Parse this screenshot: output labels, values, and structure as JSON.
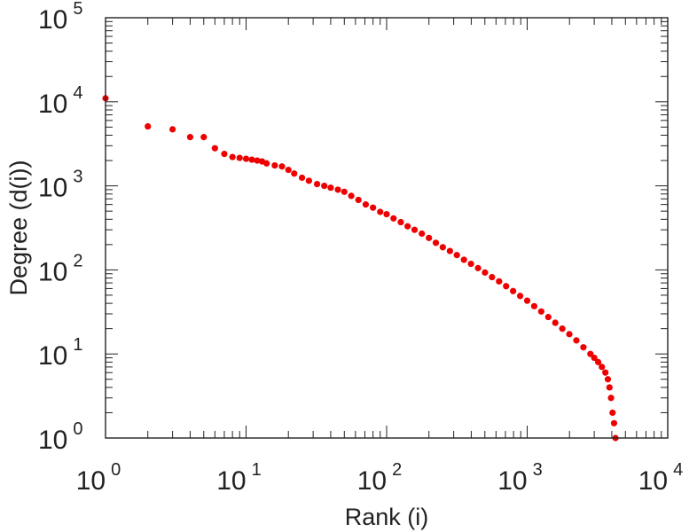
{
  "chart_data": {
    "type": "scatter",
    "xlabel": "Rank (i)",
    "ylabel": "Degree (d(i))",
    "x_scale": "log",
    "y_scale": "log",
    "xlim": [
      1,
      10000
    ],
    "ylim": [
      1,
      100000
    ],
    "grid": false,
    "legend": "none",
    "marker_color": "#ee0000",
    "x_ticks": [
      {
        "base": "10",
        "exp": "0",
        "value": 1
      },
      {
        "base": "10",
        "exp": "1",
        "value": 10
      },
      {
        "base": "10",
        "exp": "2",
        "value": 100
      },
      {
        "base": "10",
        "exp": "3",
        "value": 1000
      },
      {
        "base": "10",
        "exp": "4",
        "value": 10000
      }
    ],
    "y_ticks": [
      {
        "base": "10",
        "exp": "0",
        "value": 1
      },
      {
        "base": "10",
        "exp": "1",
        "value": 10
      },
      {
        "base": "10",
        "exp": "2",
        "value": 100
      },
      {
        "base": "10",
        "exp": "3",
        "value": 1000
      },
      {
        "base": "10",
        "exp": "4",
        "value": 10000
      },
      {
        "base": "10",
        "exp": "5",
        "value": 100000
      }
    ],
    "series": [
      {
        "color": "#ee0000",
        "x": [
          1,
          2,
          3,
          4,
          5,
          6,
          7,
          8,
          9,
          10,
          11,
          12,
          13,
          14,
          16,
          18,
          20,
          22,
          25,
          28,
          32,
          36,
          40,
          45,
          50,
          56,
          63,
          71,
          80,
          90,
          100,
          112,
          126,
          141,
          158,
          178,
          200,
          224,
          251,
          282,
          316,
          355,
          398,
          447,
          501,
          562,
          631,
          708,
          794,
          891,
          1000,
          1122,
          1259,
          1413,
          1585,
          1778,
          1995,
          2239,
          2512,
          2818,
          3000,
          3200,
          3400,
          3600,
          3750,
          3850,
          3950,
          4050,
          4150,
          4250
        ],
        "y": [
          11000,
          5100,
          4700,
          3800,
          3800,
          2800,
          2400,
          2200,
          2150,
          2100,
          2050,
          2000,
          1950,
          1850,
          1750,
          1700,
          1550,
          1400,
          1250,
          1150,
          1050,
          1000,
          950,
          900,
          850,
          760,
          680,
          600,
          550,
          490,
          460,
          410,
          370,
          330,
          300,
          270,
          240,
          210,
          186,
          168,
          150,
          132,
          118,
          105,
          93,
          82,
          73,
          64,
          56,
          49,
          43,
          37,
          32,
          27.5,
          23.5,
          20,
          17.2,
          14.5,
          12,
          10,
          9,
          8,
          7,
          6,
          5,
          4,
          3,
          2,
          1.5,
          1
        ]
      }
    ]
  }
}
